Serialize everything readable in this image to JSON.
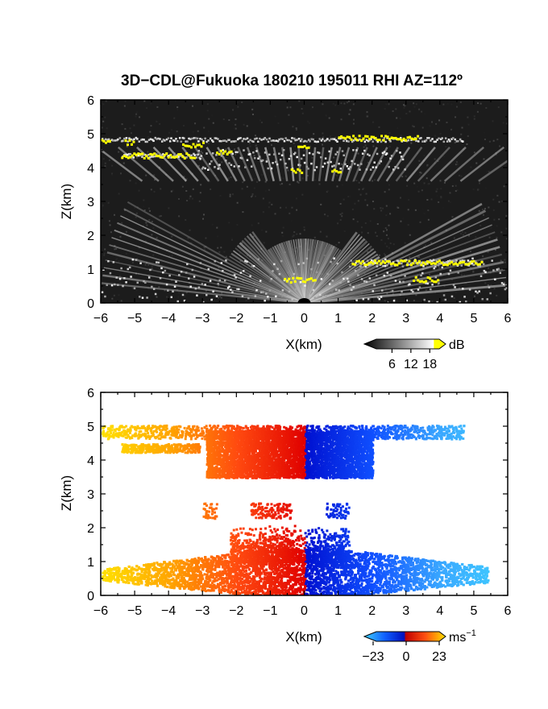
{
  "title": "3D−CDL@Fukuoka 180210 195011 RHI AZ=112º",
  "colors": {
    "reflectivity_background": "#1c1c1c",
    "reflectivity_high": "#ffff00",
    "velocity_positive_scale": [
      "#ffe000",
      "#ffa500",
      "#ff4a10",
      "#e00000"
    ],
    "velocity_negative_scale": [
      "#0010d0",
      "#1050ff",
      "#3aa8ff",
      "#40d0ff"
    ]
  },
  "chart_data": [
    {
      "type": "heatmap",
      "name": "reflectivity",
      "xlabel": "X(km)",
      "ylabel": "Z(km)",
      "xlim": [
        -6,
        6
      ],
      "ylim": [
        0,
        6
      ],
      "xticks": [
        "−6",
        "−5",
        "−4",
        "−3",
        "−2",
        "−1",
        "0",
        "1",
        "2",
        "3",
        "4",
        "5",
        "6"
      ],
      "yticks": [
        "0",
        "1",
        "2",
        "3",
        "4",
        "5",
        "6"
      ],
      "colorbar": {
        "unit": "dB",
        "ticks": [
          "6",
          "12",
          "18"
        ],
        "range": [
          0,
          21
        ]
      },
      "layers": [
        {
          "x_range": [
            -6,
            4.7
          ],
          "z_center": 4.85,
          "z_thickness": 0.12,
          "max_dB": 19
        },
        {
          "x_range": [
            -5.4,
            -3.0
          ],
          "z_center": 4.38,
          "z_thickness": 0.12,
          "max_dB": 19
        },
        {
          "x_range": [
            -3.2,
            3.0
          ],
          "z_center": 4.25,
          "z_thickness": 0.6,
          "max_dB": 14
        },
        {
          "x_range": [
            1.3,
            5.3
          ],
          "z_center": 1.2,
          "z_thickness": 0.2,
          "max_dB": 19
        },
        {
          "x_range": [
            -6,
            6
          ],
          "z_center": 0.7,
          "z_thickness": 1.3,
          "max_dB": 12
        }
      ]
    },
    {
      "type": "heatmap",
      "name": "doppler_velocity",
      "xlabel": "X(km)",
      "ylabel": "Z(km)",
      "xlim": [
        -6,
        6
      ],
      "ylim": [
        0,
        6
      ],
      "xticks": [
        "−6",
        "−5",
        "−4",
        "−3",
        "−2",
        "−1",
        "0",
        "1",
        "2",
        "3",
        "4",
        "5",
        "6"
      ],
      "yticks": [
        "0",
        "1",
        "2",
        "3",
        "4",
        "5",
        "6"
      ],
      "colorbar": {
        "unit": "ms",
        "unit_exponent": "−1",
        "ticks": [
          "−23",
          "0",
          "23"
        ],
        "range": [
          -23,
          23
        ]
      },
      "regions": [
        {
          "x_range": [
            -6,
            4.7
          ],
          "z_range": [
            4.6,
            5.1
          ],
          "velocity_sign": "radial"
        },
        {
          "x_range": [
            -3,
            2.0
          ],
          "z_range": [
            3.5,
            4.8
          ],
          "velocity_sign": "radial"
        },
        {
          "x_range": [
            -3,
            1.4
          ],
          "z_range": [
            2.3,
            2.8
          ],
          "velocity_sign": "radial"
        },
        {
          "x_range": [
            -6,
            5.4
          ],
          "z_range": [
            0.0,
            2.1
          ],
          "velocity_sign": "radial"
        }
      ]
    }
  ]
}
